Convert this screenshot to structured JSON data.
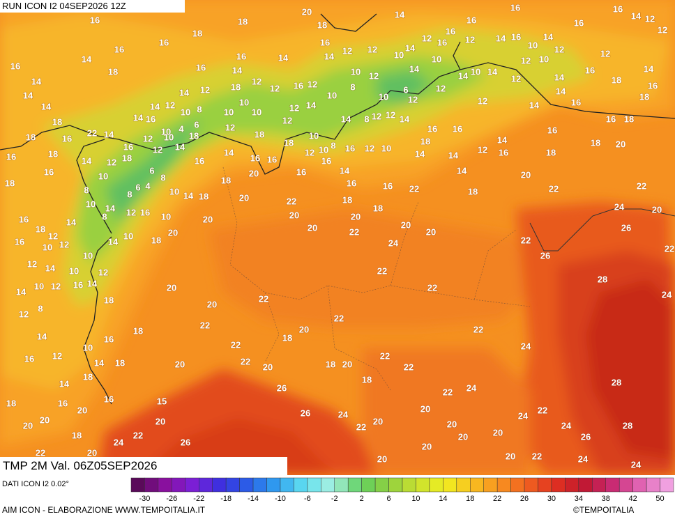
{
  "header": {
    "run": "RUN ICON I2 04SEP2026 12Z"
  },
  "map": {
    "labels": [
      20,
      14,
      16,
      16,
      14,
      12,
      16,
      18,
      18,
      16,
      16,
      16,
      12,
      18,
      16,
      16,
      16,
      12,
      16,
      12,
      14,
      16,
      10,
      14,
      12,
      12,
      16,
      14,
      16,
      14,
      14,
      12,
      12,
      10,
      14,
      10,
      12,
      10,
      14,
      18,
      16,
      14,
      10,
      12,
      14,
      10,
      14,
      14,
      16,
      18,
      16,
      14,
      14,
      14,
      12,
      18,
      12,
      12,
      16,
      12,
      10,
      8,
      10,
      6,
      12,
      12,
      14,
      12,
      14,
      18,
      14,
      14,
      12,
      10,
      8,
      10,
      10,
      10,
      12,
      14,
      12,
      14,
      16,
      18,
      14,
      16,
      10,
      4,
      6,
      12,
      18,
      12,
      10,
      14,
      8,
      12,
      12,
      14,
      16,
      18,
      18,
      16,
      22,
      14,
      16,
      12,
      10,
      18,
      16,
      16,
      14,
      16,
      16,
      18,
      14,
      12,
      18,
      12,
      14,
      14,
      16,
      16,
      18,
      12,
      10,
      8,
      16,
      12,
      10,
      18,
      14,
      14,
      12,
      16,
      18,
      18,
      20,
      18,
      16,
      10,
      6,
      8,
      16,
      20,
      16,
      16,
      14,
      16,
      16,
      22,
      14,
      20,
      22,
      22,
      8,
      8,
      6,
      4,
      10,
      14,
      18,
      18,
      20,
      10,
      14,
      12,
      16,
      10,
      22,
      18,
      18,
      18,
      24,
      20,
      16,
      18,
      14,
      8,
      20,
      20,
      20,
      20,
      20,
      22,
      20,
      16,
      10,
      12,
      12,
      14,
      10,
      18,
      20,
      26,
      24,
      22,
      22,
      12,
      14,
      10,
      12,
      10,
      26,
      22,
      14,
      10,
      12,
      16,
      14,
      18,
      20,
      22,
      28,
      24,
      12,
      8,
      20,
      22,
      22,
      22,
      18,
      20,
      22,
      14,
      10,
      16,
      22,
      18,
      24,
      16,
      12,
      14,
      18,
      20,
      22,
      20,
      18,
      20,
      22,
      22,
      14,
      18,
      18,
      28,
      26,
      22,
      24,
      18,
      16,
      16,
      15,
      20,
      20,
      20,
      26,
      24,
      20,
      24,
      22,
      20,
      20,
      22,
      20,
      24,
      28,
      18,
      24,
      22,
      26,
      20,
      20,
      26,
      22,
      20,
      20,
      20,
      20,
      22,
      24,
      24
    ]
  },
  "footer": {
    "field": "TMP 2M Val. 06Z05SEP2026",
    "source": "DATI ICON I2 0.02°",
    "credit": "AIM ICON - ELABORAZIONE WWW.TEMPOITALIA.IT",
    "brand": "©TEMPOITALIA"
  },
  "legend": {
    "ticks": [
      -30,
      -26,
      -22,
      -18,
      -14,
      -10,
      -6,
      -2,
      2,
      6,
      10,
      14,
      18,
      22,
      26,
      30,
      34,
      38,
      42,
      50
    ]
  }
}
